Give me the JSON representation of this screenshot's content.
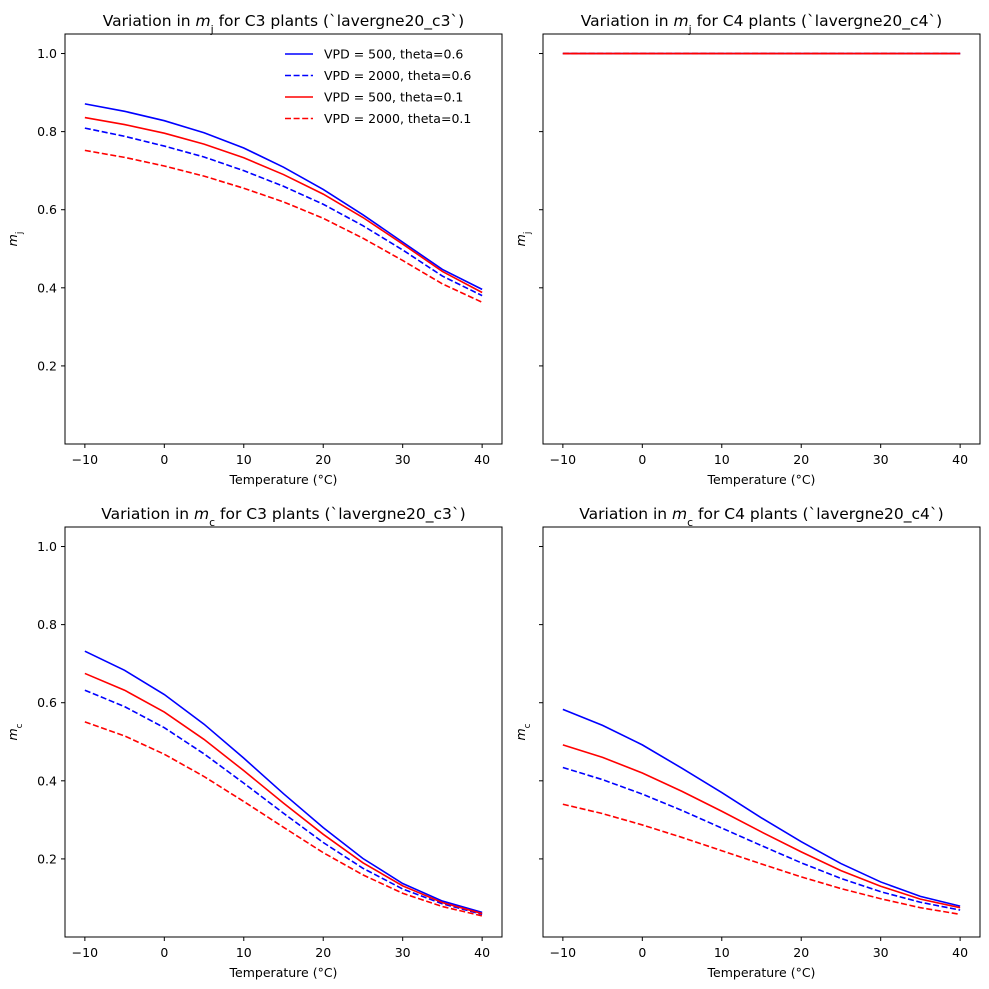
{
  "figure": {
    "background": "#ffffff"
  },
  "chart_data": [
    {
      "type": "line",
      "title_parts": [
        {
          "t": "Variation in "
        },
        {
          "t": "m",
          "i": true
        },
        {
          "t": "j",
          "sub": true
        },
        {
          "t": " for C3 plants (`lavergne20_c3`)"
        }
      ],
      "xlabel": "Temperature (°C)",
      "ylabel_parts": [
        {
          "t": "m",
          "i": true
        },
        {
          "t": "j",
          "sub": true
        }
      ],
      "xlim": [
        -12.5,
        42.5
      ],
      "ylim": [
        0.0,
        1.05
      ],
      "xticks": [
        -10,
        0,
        10,
        20,
        30,
        40
      ],
      "yticks": [
        0.2,
        0.4,
        0.6,
        0.8,
        1.0
      ],
      "show_yticklabels": true,
      "legend": "top-right",
      "x": [
        -10,
        -5,
        0,
        5,
        10,
        15,
        20,
        25,
        30,
        35,
        40
      ],
      "series": [
        {
          "name": "VPD = 500, theta=0.6",
          "color": "#0000ff",
          "dash": "solid",
          "values": [
            0.871,
            0.852,
            0.828,
            0.797,
            0.758,
            0.709,
            0.652,
            0.587,
            0.517,
            0.447,
            0.396
          ]
        },
        {
          "name": "VPD = 2000, theta=0.6",
          "color": "#0000ff",
          "dash": "dashed",
          "values": [
            0.809,
            0.788,
            0.763,
            0.735,
            0.7,
            0.66,
            0.614,
            0.559,
            0.497,
            0.43,
            0.38
          ]
        },
        {
          "name": "VPD = 500, theta=0.1",
          "color": "#ff0000",
          "dash": "solid",
          "values": [
            0.836,
            0.818,
            0.796,
            0.768,
            0.733,
            0.69,
            0.64,
            0.58,
            0.512,
            0.442,
            0.388
          ]
        },
        {
          "name": "VPD = 2000, theta=0.1",
          "color": "#ff0000",
          "dash": "dashed",
          "values": [
            0.752,
            0.734,
            0.712,
            0.686,
            0.655,
            0.62,
            0.578,
            0.527,
            0.47,
            0.41,
            0.363
          ]
        }
      ]
    },
    {
      "type": "line",
      "title_parts": [
        {
          "t": "Variation in "
        },
        {
          "t": "m",
          "i": true
        },
        {
          "t": "j",
          "sub": true
        },
        {
          "t": " for C4 plants (`lavergne20_c4`)"
        }
      ],
      "xlabel": "Temperature (°C)",
      "ylabel_parts": [
        {
          "t": "m",
          "i": true
        },
        {
          "t": "j",
          "sub": true
        }
      ],
      "xlim": [
        -12.5,
        42.5
      ],
      "ylim": [
        0.0,
        1.05
      ],
      "xticks": [
        -10,
        0,
        10,
        20,
        30,
        40
      ],
      "yticks": [
        0.2,
        0.4,
        0.6,
        0.8,
        1.0
      ],
      "show_yticklabels": false,
      "x": [
        -10,
        -5,
        0,
        5,
        10,
        15,
        20,
        25,
        30,
        35,
        40
      ],
      "series": [
        {
          "color": "#0000ff",
          "dash": "solid",
          "values": [
            1.0,
            1.0,
            1.0,
            1.0,
            1.0,
            1.0,
            1.0,
            1.0,
            1.0,
            1.0,
            1.0
          ]
        },
        {
          "color": "#0000ff",
          "dash": "dashed",
          "values": [
            1.0,
            1.0,
            1.0,
            1.0,
            1.0,
            1.0,
            1.0,
            1.0,
            1.0,
            1.0,
            1.0
          ]
        },
        {
          "color": "#ff0000",
          "dash": "solid",
          "values": [
            1.0,
            1.0,
            1.0,
            1.0,
            1.0,
            1.0,
            1.0,
            1.0,
            1.0,
            1.0,
            1.0
          ]
        },
        {
          "color": "#ff0000",
          "dash": "dashed",
          "values": [
            1.0,
            1.0,
            1.0,
            1.0,
            1.0,
            1.0,
            1.0,
            1.0,
            1.0,
            1.0,
            1.0
          ]
        }
      ]
    },
    {
      "type": "line",
      "title_parts": [
        {
          "t": "Variation in "
        },
        {
          "t": "m",
          "i": true
        },
        {
          "t": "c",
          "sub": true
        },
        {
          "t": " for C3 plants (`lavergne20_c3`)"
        }
      ],
      "xlabel": "Temperature (°C)",
      "ylabel_parts": [
        {
          "t": "m",
          "i": true
        },
        {
          "t": "c",
          "sub": true
        }
      ],
      "xlim": [
        -12.5,
        42.5
      ],
      "ylim": [
        0.0,
        1.05
      ],
      "xticks": [
        -10,
        0,
        10,
        20,
        30,
        40
      ],
      "yticks": [
        0.2,
        0.4,
        0.6,
        0.8,
        1.0
      ],
      "show_yticklabels": true,
      "x": [
        -10,
        -5,
        0,
        5,
        10,
        15,
        20,
        25,
        30,
        35,
        40
      ],
      "series": [
        {
          "color": "#0000ff",
          "dash": "solid",
          "values": [
            0.732,
            0.683,
            0.621,
            0.545,
            0.458,
            0.367,
            0.28,
            0.201,
            0.137,
            0.092,
            0.063
          ]
        },
        {
          "color": "#0000ff",
          "dash": "dashed",
          "values": [
            0.632,
            0.59,
            0.536,
            0.469,
            0.394,
            0.317,
            0.242,
            0.176,
            0.123,
            0.085,
            0.058
          ]
        },
        {
          "color": "#ff0000",
          "dash": "solid",
          "values": [
            0.675,
            0.632,
            0.576,
            0.506,
            0.426,
            0.343,
            0.263,
            0.19,
            0.131,
            0.088,
            0.06
          ]
        },
        {
          "color": "#ff0000",
          "dash": "dashed",
          "values": [
            0.551,
            0.515,
            0.468,
            0.411,
            0.347,
            0.281,
            0.216,
            0.159,
            0.112,
            0.078,
            0.054
          ]
        }
      ]
    },
    {
      "type": "line",
      "title_parts": [
        {
          "t": "Variation in "
        },
        {
          "t": "m",
          "i": true
        },
        {
          "t": "c",
          "sub": true
        },
        {
          "t": " for C4 plants (`lavergne20_c4`)"
        }
      ],
      "xlabel": "Temperature (°C)",
      "ylabel_parts": [
        {
          "t": "m",
          "i": true
        },
        {
          "t": "c",
          "sub": true
        }
      ],
      "xlim": [
        -12.5,
        42.5
      ],
      "ylim": [
        0.0,
        1.05
      ],
      "xticks": [
        -10,
        0,
        10,
        20,
        30,
        40
      ],
      "yticks": [
        0.2,
        0.4,
        0.6,
        0.8,
        1.0
      ],
      "show_yticklabels": false,
      "x": [
        -10,
        -5,
        0,
        5,
        10,
        15,
        20,
        25,
        30,
        35,
        40
      ],
      "series": [
        {
          "color": "#0000ff",
          "dash": "solid",
          "values": [
            0.583,
            0.542,
            0.492,
            0.432,
            0.37,
            0.305,
            0.244,
            0.188,
            0.141,
            0.104,
            0.079
          ]
        },
        {
          "color": "#0000ff",
          "dash": "dashed",
          "values": [
            0.434,
            0.403,
            0.366,
            0.324,
            0.279,
            0.234,
            0.19,
            0.15,
            0.116,
            0.089,
            0.069
          ]
        },
        {
          "color": "#ff0000",
          "dash": "solid",
          "values": [
            0.492,
            0.46,
            0.42,
            0.373,
            0.322,
            0.269,
            0.218,
            0.17,
            0.13,
            0.097,
            0.075
          ]
        },
        {
          "color": "#ff0000",
          "dash": "dashed",
          "values": [
            0.34,
            0.316,
            0.287,
            0.255,
            0.221,
            0.187,
            0.154,
            0.124,
            0.098,
            0.075,
            0.058
          ]
        }
      ]
    }
  ]
}
